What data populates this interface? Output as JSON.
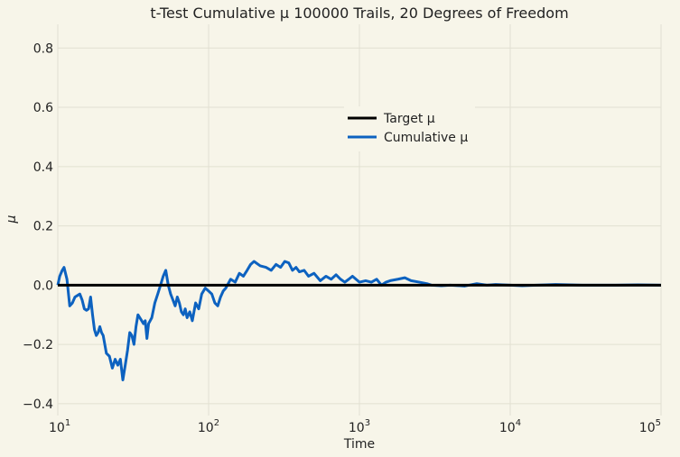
{
  "chart_data": {
    "type": "line",
    "title": "t-Test Cumulative μ 100000 Trails, 20 Degrees of Freedom",
    "xlabel": "Time",
    "ylabel": "μ",
    "xscale": "log",
    "xlim": [
      10,
      100000
    ],
    "ylim": [
      -0.44,
      0.88
    ],
    "x_ticks": [
      10,
      100,
      1000,
      10000,
      100000
    ],
    "x_tick_labels": [
      {
        "base": "10",
        "exp": "1"
      },
      {
        "base": "10",
        "exp": "2"
      },
      {
        "base": "10",
        "exp": "3"
      },
      {
        "base": "10",
        "exp": "4"
      },
      {
        "base": "10",
        "exp": "5"
      }
    ],
    "y_ticks": [
      -0.4,
      -0.2,
      0.0,
      0.2,
      0.4,
      0.6,
      0.8
    ],
    "y_tick_labels": [
      "−0.4",
      "−0.2",
      "0.0",
      "0.2",
      "0.4",
      "0.6",
      "0.8"
    ],
    "grid": true,
    "legend_position": "upper-center",
    "series": [
      {
        "name": "Target μ",
        "color": "#000000",
        "x": [
          10,
          100000
        ],
        "y": [
          0,
          0
        ]
      },
      {
        "name": "Cumulative μ",
        "color": "#0d62c0",
        "x": [
          10,
          10.3,
          10.7,
          11,
          11.5,
          12,
          12.5,
          13,
          13.5,
          14,
          14.5,
          15,
          15.5,
          16,
          16.5,
          17,
          17.5,
          18,
          18.5,
          19,
          19.5,
          20,
          21,
          22,
          23,
          24,
          25,
          26,
          27,
          28,
          29,
          30,
          31,
          32,
          33,
          34,
          35,
          36,
          37,
          38,
          39,
          40,
          42,
          44,
          46,
          48,
          50,
          52,
          54,
          56,
          58,
          60,
          62,
          64,
          66,
          68,
          70,
          72,
          75,
          78,
          82,
          86,
          90,
          95,
          100,
          105,
          110,
          115,
          120,
          125,
          130,
          140,
          150,
          160,
          170,
          180,
          190,
          200,
          220,
          240,
          260,
          280,
          300,
          320,
          340,
          360,
          380,
          400,
          430,
          460,
          500,
          550,
          600,
          650,
          700,
          750,
          800,
          850,
          900,
          1000,
          1100,
          1200,
          1300,
          1400,
          1500,
          1600,
          1800,
          2000,
          2200,
          2500,
          2800,
          3000,
          3500,
          4000,
          5000,
          6000,
          7000,
          8000,
          10000,
          12000,
          15000,
          20000,
          30000,
          50000,
          70000,
          100000
        ],
        "y": [
          0,
          0.03,
          0.05,
          0.06,
          0.02,
          -0.07,
          -0.06,
          -0.04,
          -0.035,
          -0.03,
          -0.05,
          -0.08,
          -0.085,
          -0.08,
          -0.04,
          -0.1,
          -0.15,
          -0.17,
          -0.16,
          -0.14,
          -0.16,
          -0.17,
          -0.23,
          -0.24,
          -0.28,
          -0.25,
          -0.27,
          -0.25,
          -0.32,
          -0.27,
          -0.22,
          -0.16,
          -0.17,
          -0.2,
          -0.14,
          -0.1,
          -0.11,
          -0.12,
          -0.13,
          -0.12,
          -0.18,
          -0.13,
          -0.11,
          -0.06,
          -0.03,
          0.0,
          0.03,
          0.05,
          0.0,
          -0.03,
          -0.05,
          -0.07,
          -0.04,
          -0.06,
          -0.09,
          -0.1,
          -0.08,
          -0.11,
          -0.09,
          -0.12,
          -0.06,
          -0.08,
          -0.03,
          -0.01,
          -0.02,
          -0.03,
          -0.06,
          -0.07,
          -0.04,
          -0.02,
          -0.01,
          0.02,
          0.01,
          0.04,
          0.03,
          0.05,
          0.07,
          0.08,
          0.065,
          0.06,
          0.05,
          0.07,
          0.06,
          0.08,
          0.075,
          0.05,
          0.06,
          0.045,
          0.05,
          0.03,
          0.04,
          0.015,
          0.03,
          0.02,
          0.035,
          0.02,
          0.01,
          0.02,
          0.03,
          0.01,
          0.015,
          0.01,
          0.02,
          0.0,
          0.01,
          0.015,
          0.02,
          0.025,
          0.015,
          0.01,
          0.005,
          0.0,
          -0.002,
          0.0,
          -0.003,
          0.005,
          0.0,
          0.002,
          0.0,
          -0.002,
          0.0,
          0.002,
          0.0,
          0.0,
          0.001,
          0.0
        ]
      }
    ]
  }
}
